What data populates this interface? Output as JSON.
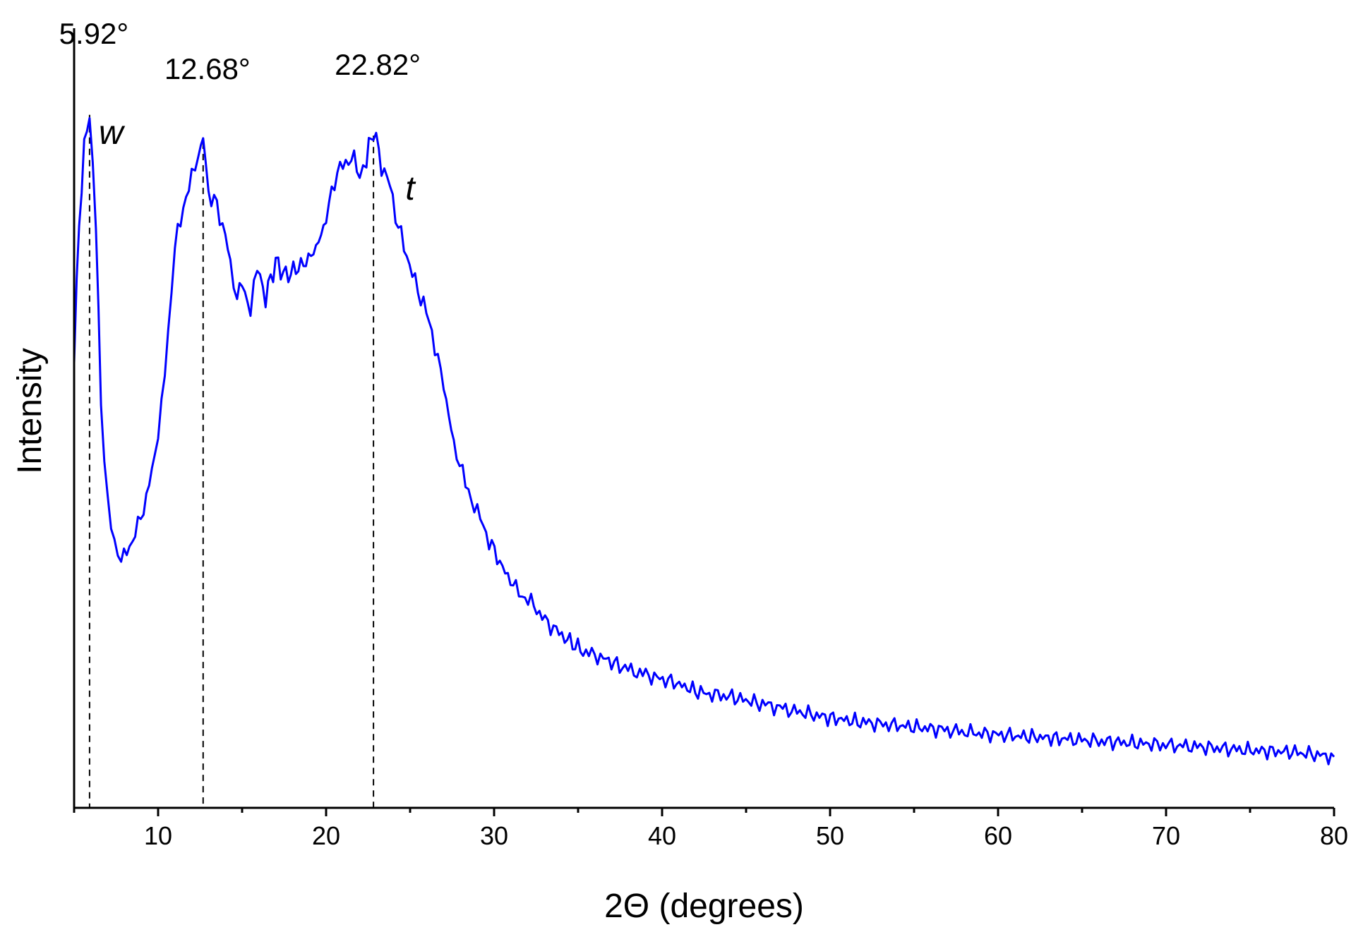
{
  "chart_data": {
    "type": "line",
    "xlabel": "2Θ (degrees)",
    "ylabel": "Intensity",
    "xlim": [
      5,
      80
    ],
    "ylim": [
      0,
      1
    ],
    "x_ticks": [
      10,
      20,
      30,
      40,
      50,
      60,
      70,
      80
    ],
    "y_tick_labels_shown": false,
    "grid": false,
    "line_color": "#0000ff",
    "reference_line_color": "#000000",
    "peaks": [
      {
        "x": 5.92,
        "label": "5.92°"
      },
      {
        "x": 12.68,
        "label": "12.68°"
      },
      {
        "x": 22.82,
        "label": "22.82°"
      }
    ],
    "annotations": [
      {
        "text": "w",
        "x": 7.2,
        "y": 0.93
      },
      {
        "text": "t",
        "x": 25.0,
        "y": 0.85
      }
    ],
    "series": [
      {
        "x": [
          5,
          5.3,
          5.6,
          5.92,
          6.3,
          6.6,
          7.0,
          7.4,
          7.8,
          8.3,
          8.8,
          9.3,
          9.8,
          10.2,
          10.6,
          11.0,
          11.5,
          12.0,
          12.4,
          12.68,
          13.0,
          13.5,
          14.0,
          14.3,
          14.7,
          15.0,
          15.5,
          15.9,
          16.4,
          17.0,
          17.6,
          18.2,
          18.8,
          19.4,
          20.0,
          20.5,
          21.0,
          21.5,
          22.0,
          22.4,
          22.82,
          23.3,
          23.8,
          24.3,
          24.8,
          25.3,
          25.8,
          26.3,
          27.0,
          27.6,
          28.3,
          29.0,
          29.7,
          30.5,
          31.3,
          32.2,
          33.2,
          34.2,
          35.3,
          36.5,
          37.8,
          39.2,
          40.7,
          42.3,
          44.0,
          45.8,
          47.7,
          49.7,
          51.8,
          54.0,
          56.3,
          58.7,
          61.2,
          63.8,
          66.5,
          69.3,
          72.2,
          75.2,
          77.5,
          80.0
        ],
        "values": [
          0.62,
          0.82,
          0.92,
          0.98,
          0.82,
          0.55,
          0.42,
          0.36,
          0.33,
          0.35,
          0.38,
          0.42,
          0.48,
          0.56,
          0.66,
          0.78,
          0.84,
          0.88,
          0.91,
          0.94,
          0.86,
          0.84,
          0.8,
          0.76,
          0.71,
          0.73,
          0.69,
          0.75,
          0.71,
          0.76,
          0.74,
          0.75,
          0.76,
          0.78,
          0.82,
          0.88,
          0.9,
          0.91,
          0.89,
          0.91,
          0.95,
          0.9,
          0.87,
          0.81,
          0.77,
          0.73,
          0.7,
          0.66,
          0.58,
          0.5,
          0.44,
          0.4,
          0.36,
          0.32,
          0.29,
          0.27,
          0.24,
          0.22,
          0.2,
          0.19,
          0.175,
          0.165,
          0.155,
          0.14,
          0.135,
          0.125,
          0.115,
          0.105,
          0.098,
          0.093,
          0.088,
          0.082,
          0.078,
          0.074,
          0.07,
          0.066,
          0.062,
          0.057,
          0.055,
          0.048
        ]
      }
    ]
  }
}
